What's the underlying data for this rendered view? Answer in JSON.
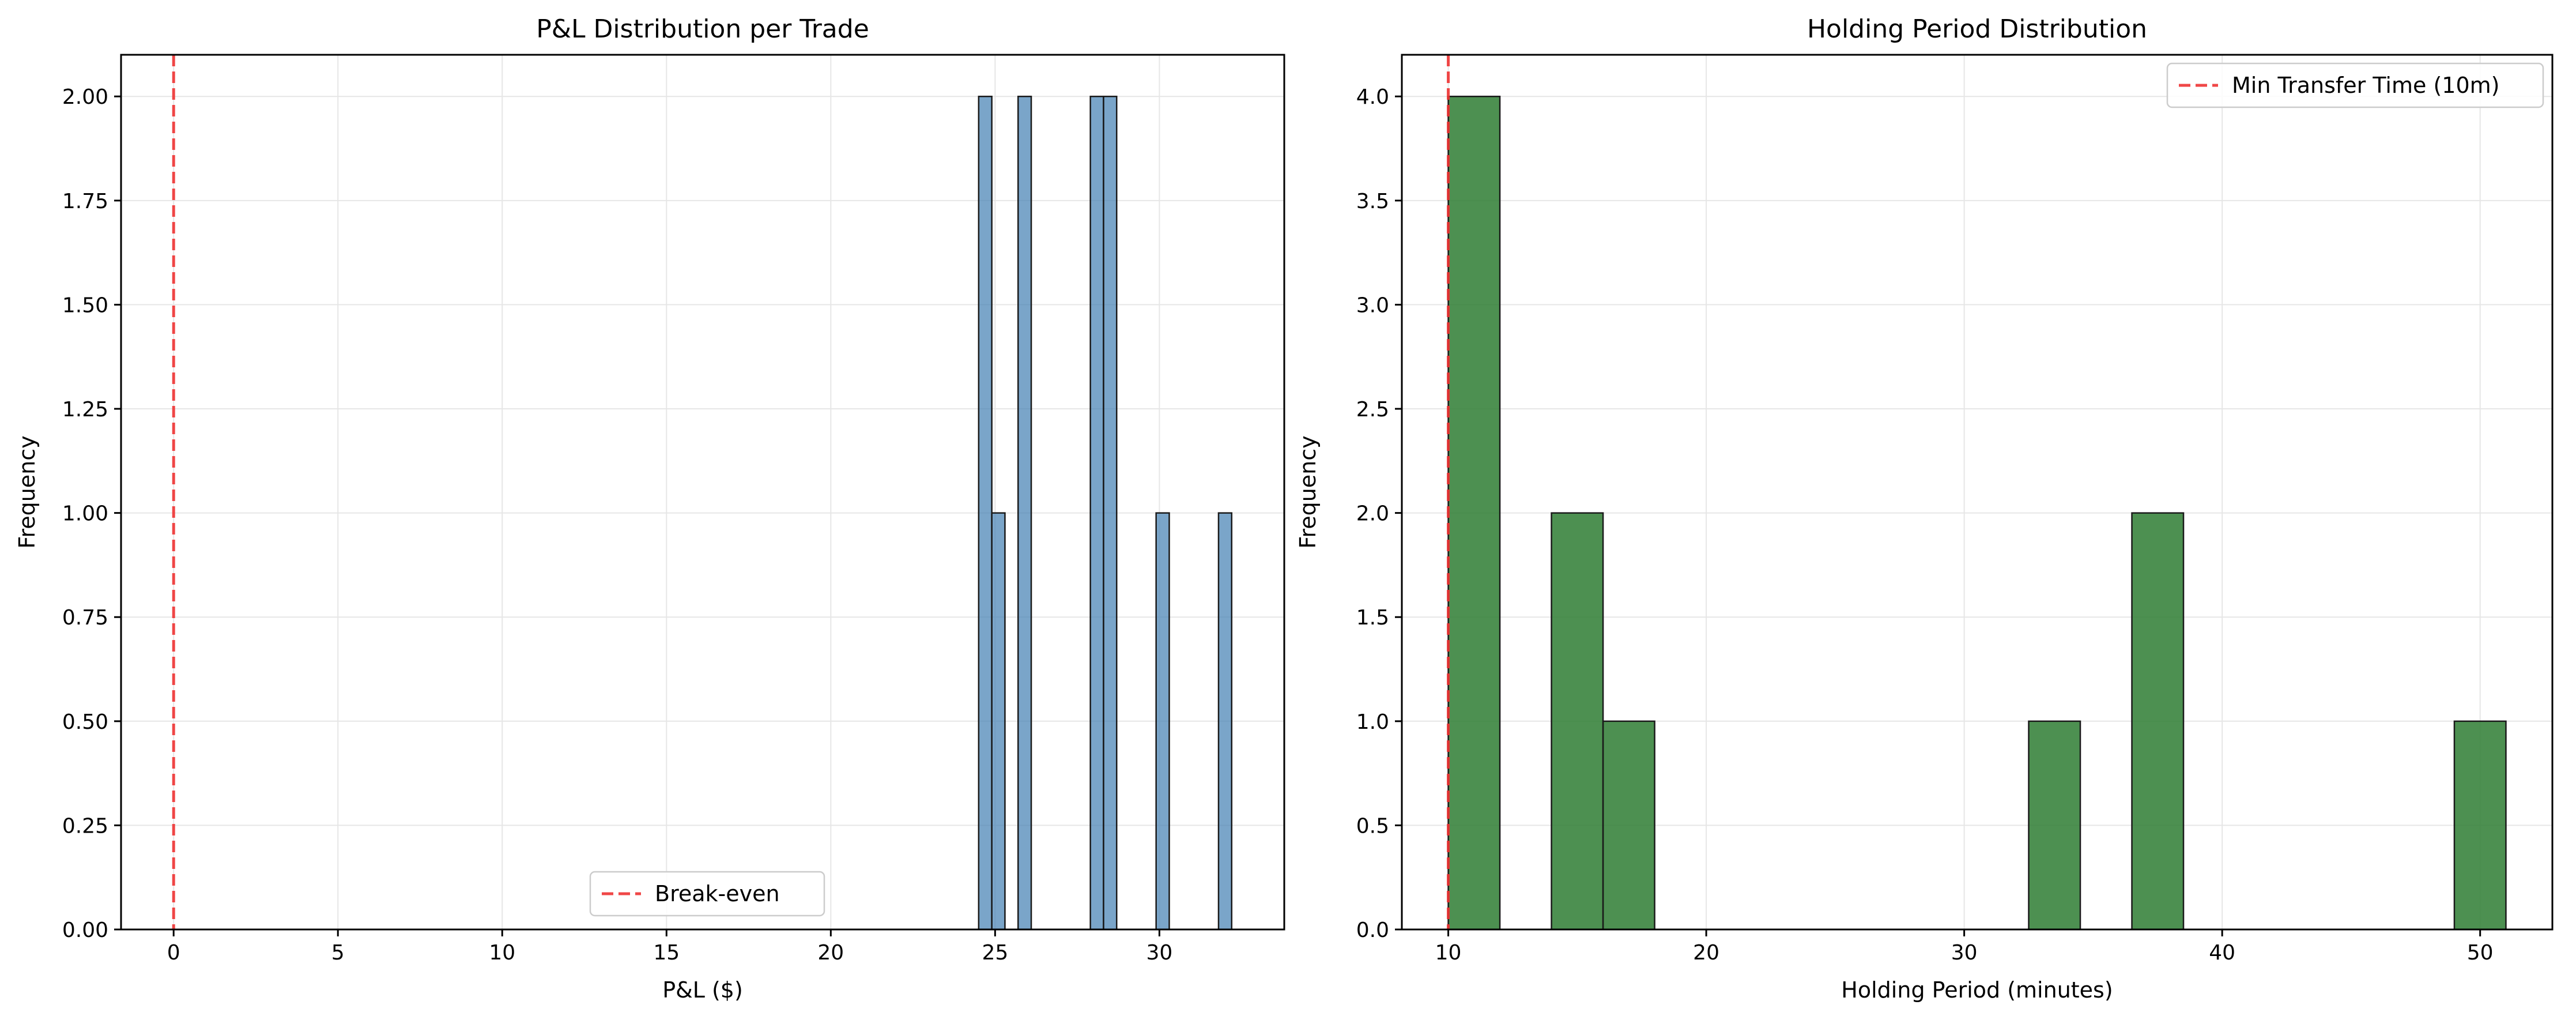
{
  "chart_data": [
    {
      "type": "bar",
      "title": "P&L Distribution per Trade",
      "xlabel": "P&L ($)",
      "ylabel": "Frequency",
      "xlim": [
        -1.6,
        33.8
      ],
      "ylim": [
        0,
        2.1
      ],
      "xticks": [
        0,
        5,
        10,
        15,
        20,
        25,
        30
      ],
      "xtick_labels": [
        "0",
        "5",
        "10",
        "15",
        "20",
        "25",
        "30"
      ],
      "yticks": [
        0,
        0.25,
        0.5,
        0.75,
        1.0,
        1.25,
        1.5,
        1.75,
        2.0
      ],
      "ytick_labels": [
        "0.00",
        "0.25",
        "0.50",
        "0.75",
        "1.00",
        "1.25",
        "1.50",
        "1.75",
        "2.00"
      ],
      "grid": true,
      "bar_color": "#4682b4",
      "bars": [
        {
          "x0": 24.5,
          "x1": 24.9,
          "value": 2
        },
        {
          "x0": 24.9,
          "x1": 25.3,
          "value": 1
        },
        {
          "x0": 25.7,
          "x1": 26.1,
          "value": 2
        },
        {
          "x0": 27.9,
          "x1": 28.3,
          "value": 2
        },
        {
          "x0": 28.3,
          "x1": 28.7,
          "value": 2
        },
        {
          "x0": 29.9,
          "x1": 30.3,
          "value": 1
        },
        {
          "x0": 31.8,
          "x1": 32.2,
          "value": 1
        }
      ],
      "reference_line": {
        "x": 0,
        "label": "Break-even",
        "color": "#ee3333"
      },
      "legend_position": "lower-center"
    },
    {
      "type": "bar",
      "title": "Holding Period Distribution",
      "xlabel": "Holding Period (minutes)",
      "ylabel": "Frequency",
      "xlim": [
        8.2,
        52.8
      ],
      "ylim": [
        0,
        4.2
      ],
      "xticks": [
        10,
        20,
        30,
        40,
        50
      ],
      "xtick_labels": [
        "10",
        "20",
        "30",
        "40",
        "50"
      ],
      "yticks": [
        0,
        0.5,
        1.0,
        1.5,
        2.0,
        2.5,
        3.0,
        3.5,
        4.0
      ],
      "ytick_labels": [
        "0.0",
        "0.5",
        "1.0",
        "1.5",
        "2.0",
        "2.5",
        "3.0",
        "3.5",
        "4.0"
      ],
      "grid": true,
      "bar_color": "#2e7d32",
      "bars": [
        {
          "x0": 10,
          "x1": 12,
          "value": 4
        },
        {
          "x0": 14,
          "x1": 16,
          "value": 2
        },
        {
          "x0": 16,
          "x1": 18,
          "value": 1
        },
        {
          "x0": 32.5,
          "x1": 34.5,
          "value": 1
        },
        {
          "x0": 36.5,
          "x1": 38.5,
          "value": 2
        },
        {
          "x0": 49,
          "x1": 51,
          "value": 1
        }
      ],
      "reference_line": {
        "x": 10,
        "label": "Min Transfer Time (10m)",
        "color": "#ee3333"
      },
      "legend_position": "upper-right"
    }
  ]
}
